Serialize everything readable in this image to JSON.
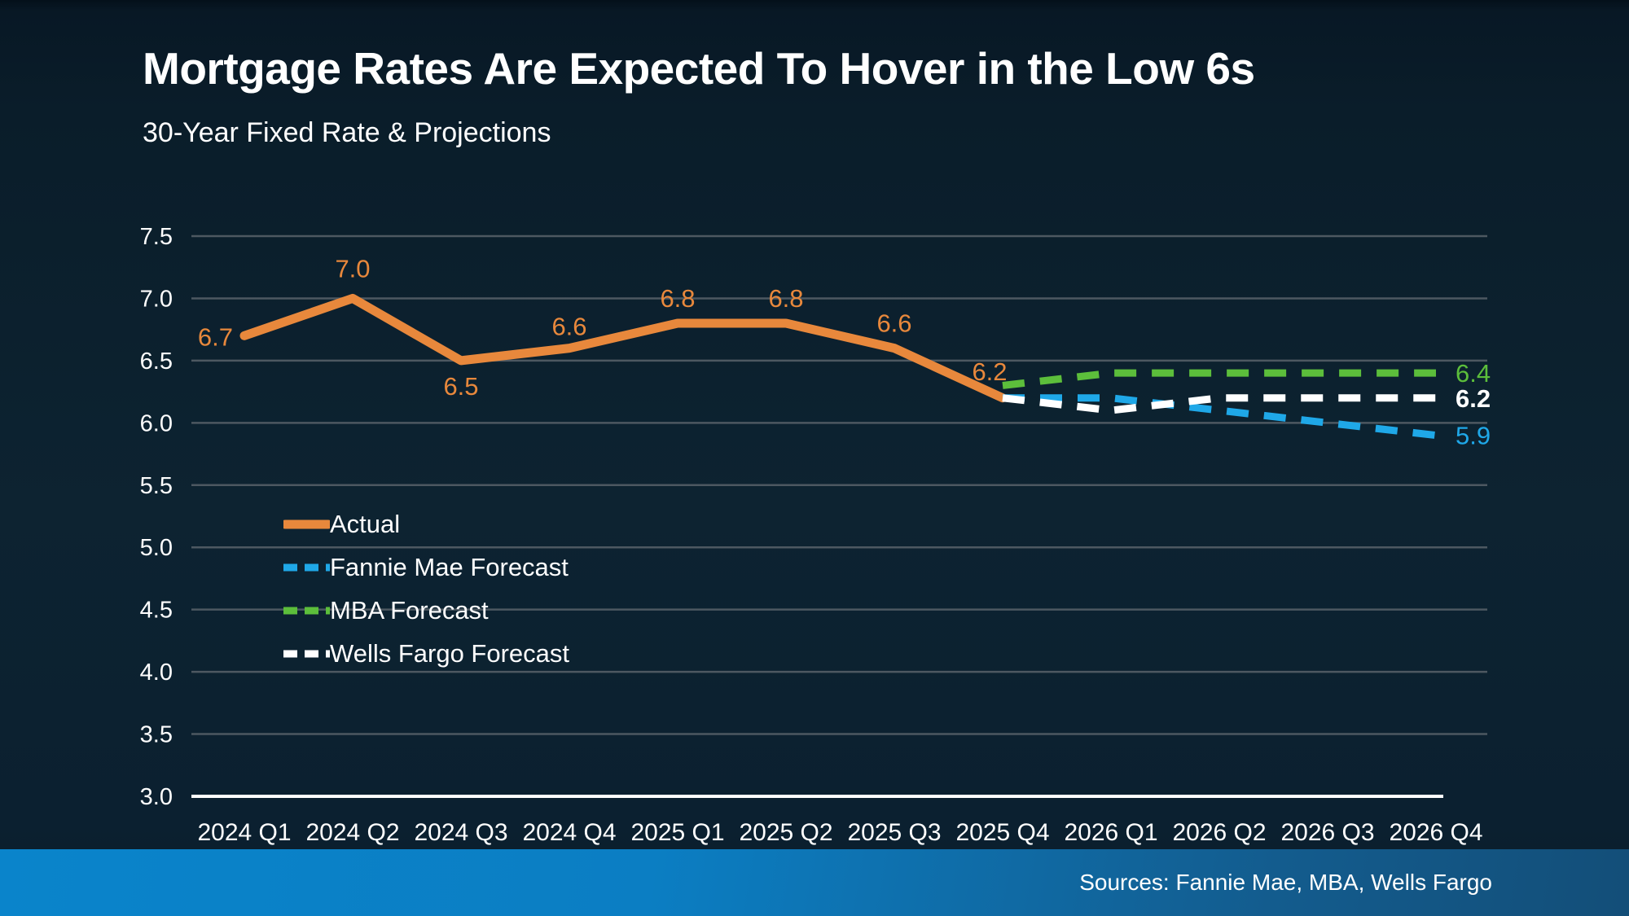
{
  "header": {
    "title": "Mortgage Rates Are Expected To Hover in the Low 6s",
    "subtitle": "30-Year Fixed Rate & Projections"
  },
  "footer": {
    "sources": "Sources: Fannie Mae, MBA, Wells Fargo"
  },
  "colors": {
    "background": "#0d2331",
    "text": "#ffffff",
    "gridline": "#4d5861",
    "axis_line": "#ffffff",
    "actual": "#e8883c",
    "fannie_mae": "#1fa8e8",
    "mba": "#5cbe3b",
    "wells_fargo": "#ffffff",
    "footer_bar_left": "#0a84cb",
    "footer_bar_right": "#134e78"
  },
  "legend": {
    "items": [
      {
        "label": "Actual"
      },
      {
        "label": "Fannie Mae Forecast"
      },
      {
        "label": "MBA Forecast"
      },
      {
        "label": "Wells Fargo Forecast"
      }
    ]
  },
  "chart_data": {
    "type": "line",
    "title": "30-Year Fixed Rate & Projections",
    "categories": [
      "2024 Q1",
      "2024 Q2",
      "2024 Q3",
      "2024 Q4",
      "2025 Q1",
      "2025 Q2",
      "2025 Q3",
      "2025 Q4",
      "2026 Q1",
      "2026 Q2",
      "2026 Q3",
      "2026 Q4"
    ],
    "ylim": [
      3.0,
      7.5
    ],
    "ytick_step": 0.5,
    "ytick_labels": [
      "7.5",
      "7.0",
      "6.5",
      "6.0",
      "5.5",
      "5.0",
      "4.5",
      "4.0",
      "3.5",
      "3.0"
    ],
    "grid": true,
    "legend_position": "inside-left",
    "series": [
      {
        "name": "Actual",
        "color": "#e8883c",
        "style": "solid",
        "values": [
          6.7,
          7.0,
          6.5,
          6.6,
          6.8,
          6.8,
          6.6,
          6.2,
          null,
          null,
          null,
          null
        ],
        "point_labels": [
          "6.7",
          "7.0",
          "6.5",
          "6.6",
          "6.8",
          "6.8",
          "6.6",
          "6.2"
        ]
      },
      {
        "name": "Fannie Mae Forecast",
        "color": "#1fa8e8",
        "style": "dashed",
        "values": [
          null,
          null,
          null,
          null,
          null,
          null,
          null,
          6.2,
          6.2,
          6.1,
          6.0,
          5.9
        ],
        "end_label": "5.9",
        "end_label_bold": false
      },
      {
        "name": "MBA Forecast",
        "color": "#5cbe3b",
        "style": "dashed",
        "values": [
          null,
          null,
          null,
          null,
          null,
          null,
          null,
          6.3,
          6.4,
          6.4,
          6.4,
          6.4
        ],
        "end_label": "6.4",
        "end_label_bold": false
      },
      {
        "name": "Wells Fargo Forecast",
        "color": "#ffffff",
        "style": "dashed",
        "values": [
          null,
          null,
          null,
          null,
          null,
          null,
          null,
          6.2,
          6.1,
          6.2,
          6.2,
          6.2
        ],
        "end_label": "6.2",
        "end_label_bold": true
      }
    ]
  }
}
